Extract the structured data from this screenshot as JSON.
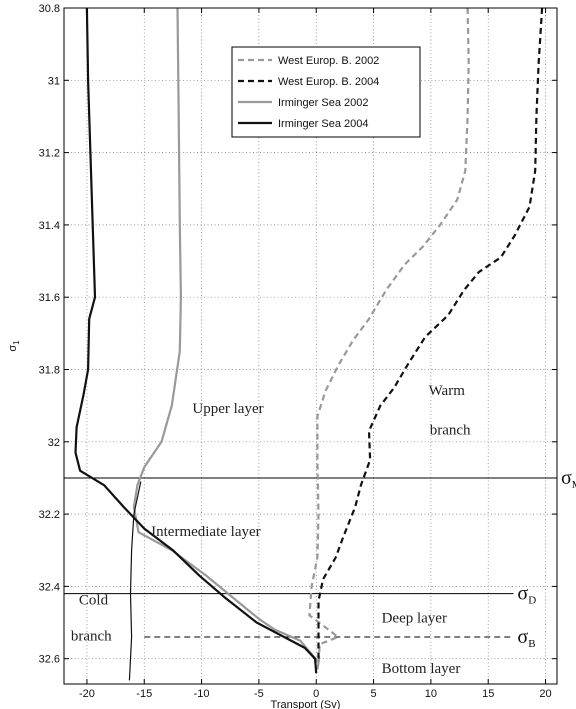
{
  "chart_data": {
    "type": "line",
    "xlabel": "Transport (Sv)",
    "ylabel": "σ1",
    "xlim": [
      -22,
      21
    ],
    "ylim": [
      30.8,
      32.67
    ],
    "y_inverted": true,
    "grid": true,
    "grid_style": "dotted",
    "legend_position": "top-right",
    "x_ticks": [
      -20,
      -15,
      -10,
      -5,
      0,
      5,
      10,
      15,
      20
    ],
    "x_tick_labels": [
      "-20",
      "-15",
      "-10",
      "-5",
      "0",
      "5",
      "10",
      "15",
      "20"
    ],
    "y_ticks": [
      30.8,
      31,
      31.2,
      31.4,
      31.6,
      31.8,
      32,
      32.2,
      32.4,
      32.6
    ],
    "y_tick_labels": [
      "30.8",
      "31",
      "31.2",
      "31.4",
      "31.6",
      "31.8",
      "32",
      "32.2",
      "32.4",
      "32.6"
    ],
    "series": [
      {
        "name": "West Europ. B. 2002",
        "color": "#999999",
        "dash": "dashed",
        "points": [
          [
            13.2,
            30.8
          ],
          [
            13.3,
            30.95
          ],
          [
            13.2,
            31.1
          ],
          [
            13.0,
            31.25
          ],
          [
            12.3,
            31.33
          ],
          [
            10.8,
            31.4
          ],
          [
            9.3,
            31.46
          ],
          [
            7.7,
            31.51
          ],
          [
            6.1,
            31.58
          ],
          [
            4.6,
            31.66
          ],
          [
            3.2,
            31.72
          ],
          [
            1.9,
            31.79
          ],
          [
            0.8,
            31.86
          ],
          [
            0.1,
            31.93
          ],
          [
            0.1,
            32.05
          ],
          [
            0.2,
            32.2
          ],
          [
            0.1,
            32.32
          ],
          [
            -0.4,
            32.4
          ],
          [
            -0.6,
            32.48
          ],
          [
            1.1,
            32.52
          ],
          [
            1.9,
            32.54
          ],
          [
            0.3,
            32.56
          ],
          [
            0.2,
            32.62
          ]
        ]
      },
      {
        "name": "West Europ. B. 2004",
        "color": "#111111",
        "dash": "dashed",
        "points": [
          [
            19.7,
            30.8
          ],
          [
            19.4,
            30.95
          ],
          [
            19.2,
            31.1
          ],
          [
            19.1,
            31.25
          ],
          [
            18.6,
            31.35
          ],
          [
            17.3,
            31.43
          ],
          [
            16.1,
            31.49
          ],
          [
            14.2,
            31.53
          ],
          [
            12.9,
            31.58
          ],
          [
            11.5,
            31.65
          ],
          [
            9.5,
            31.71
          ],
          [
            8.1,
            31.78
          ],
          [
            6.8,
            31.85
          ],
          [
            5.6,
            31.9
          ],
          [
            4.6,
            31.97
          ],
          [
            4.7,
            32.05
          ],
          [
            3.9,
            32.12
          ],
          [
            3.4,
            32.18
          ],
          [
            2.4,
            32.26
          ],
          [
            1.7,
            32.32
          ],
          [
            0.6,
            32.38
          ],
          [
            0.2,
            32.44
          ],
          [
            0.2,
            32.52
          ],
          [
            0.2,
            32.6
          ]
        ]
      },
      {
        "name": "Irminger Sea 2002",
        "color": "#999999",
        "dash": "solid",
        "points": [
          [
            -12.1,
            30.8
          ],
          [
            -12.0,
            31.1
          ],
          [
            -11.9,
            31.4
          ],
          [
            -11.8,
            31.6
          ],
          [
            -11.9,
            31.75
          ],
          [
            -12.6,
            31.9
          ],
          [
            -13.5,
            32.0
          ],
          [
            -15.0,
            32.07
          ],
          [
            -15.6,
            32.12
          ],
          [
            -15.9,
            32.18
          ],
          [
            -15.5,
            32.25
          ],
          [
            -12.6,
            32.3
          ],
          [
            -9.6,
            32.37
          ],
          [
            -7.7,
            32.42
          ],
          [
            -5.0,
            32.49
          ],
          [
            -3.6,
            32.52
          ],
          [
            -1.4,
            32.55
          ],
          [
            -0.6,
            32.58
          ],
          [
            0.2,
            32.61
          ],
          [
            0.1,
            32.63
          ]
        ]
      },
      {
        "name": "Irminger Sea 2004",
        "color": "#111111",
        "dash": "solid",
        "points": [
          [
            -20.0,
            30.8
          ],
          [
            -19.9,
            31.0
          ],
          [
            -19.7,
            31.2
          ],
          [
            -19.5,
            31.4
          ],
          [
            -19.3,
            31.6
          ],
          [
            -19.8,
            31.66
          ],
          [
            -19.9,
            31.8
          ],
          [
            -20.3,
            31.87
          ],
          [
            -20.9,
            31.96
          ],
          [
            -21.0,
            32.03
          ],
          [
            -20.6,
            32.08
          ],
          [
            -18.5,
            32.12
          ],
          [
            -16.8,
            32.18
          ],
          [
            -15.0,
            32.24
          ],
          [
            -12.5,
            32.3
          ],
          [
            -10.2,
            32.37
          ],
          [
            -8.0,
            32.43
          ],
          [
            -5.2,
            32.5
          ],
          [
            -2.8,
            32.54
          ],
          [
            -1.0,
            32.57
          ],
          [
            -0.1,
            32.6
          ],
          [
            0.0,
            32.64
          ]
        ]
      },
      {
        "name": "",
        "color": "#111111",
        "dash": "solid",
        "width": 1.2,
        "points": [
          [
            -15.3,
            32.11
          ],
          [
            -15.9,
            32.2
          ],
          [
            -16.1,
            32.3
          ],
          [
            -16.2,
            32.42
          ],
          [
            -16.1,
            32.54
          ],
          [
            -16.3,
            32.66
          ]
        ]
      }
    ],
    "reference_lines": [
      {
        "y": 32.1,
        "x_from": -22,
        "x_to": 21,
        "style": "solid",
        "label": "σ",
        "subscript": "MOC"
      },
      {
        "y": 32.42,
        "x_from": -22,
        "x_to": 17.2,
        "style": "solid",
        "label": "σ",
        "subscript": "D"
      },
      {
        "y": 32.54,
        "x_from": -15,
        "x_to": 17.2,
        "style": "dashed",
        "label": "σ",
        "subscript": "B"
      }
    ],
    "annotations": [
      {
        "text": "Upper layer",
        "x": -10.8,
        "y": 31.92
      },
      {
        "text": "Warm",
        "x": 9.8,
        "y": 31.87
      },
      {
        "text": "branch",
        "x": 9.9,
        "y": 31.98
      },
      {
        "text": "Intermediate layer",
        "x": -14.4,
        "y": 32.26
      },
      {
        "text": "Cold",
        "x": -20.7,
        "y": 32.45
      },
      {
        "text": "branch",
        "x": -21.4,
        "y": 32.55
      },
      {
        "text": "Deep layer",
        "x": 5.7,
        "y": 32.5
      },
      {
        "text": "Bottom layer",
        "x": 5.7,
        "y": 32.64
      }
    ]
  }
}
